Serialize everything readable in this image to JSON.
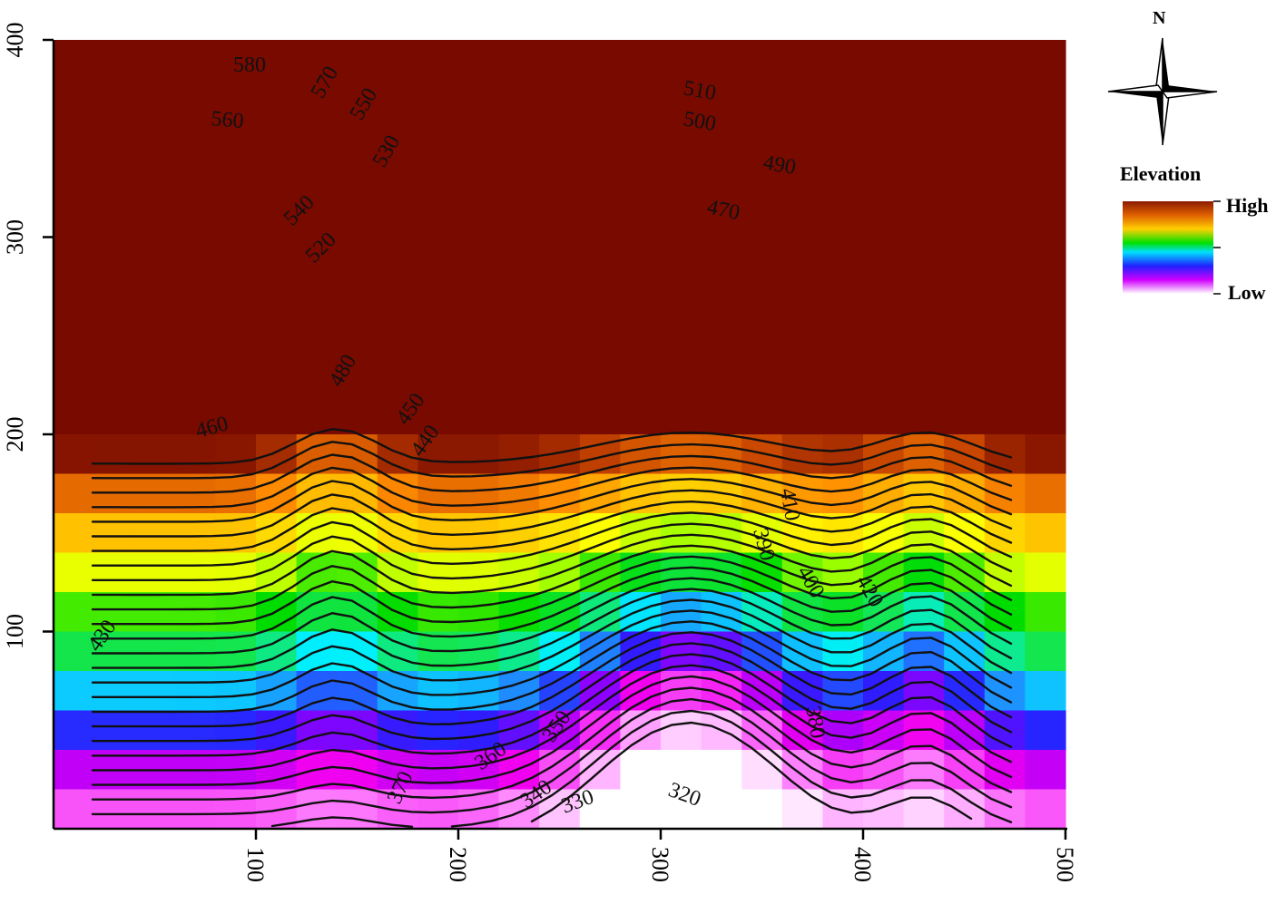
{
  "map": {
    "legend_title": "Elevation",
    "legend_high": "High",
    "legend_low": "Low",
    "north_label": "N",
    "x_ticks": [
      "100",
      "200",
      "300",
      "400",
      "500"
    ],
    "y_ticks": [
      "100",
      "200",
      "300",
      "400"
    ],
    "x_range": [
      0,
      500
    ],
    "y_range": [
      0,
      400
    ],
    "color_ramp": [
      "#6b0000",
      "#b33a00",
      "#ff8c00",
      "#ffd700",
      "#ffff00",
      "#a8ff00",
      "#00e600",
      "#00ffff",
      "#0080ff",
      "#1010ff",
      "#8000ff",
      "#ff00ff",
      "#ffffff"
    ],
    "contour_labels": [
      "580",
      "570",
      "560",
      "550",
      "540",
      "530",
      "520",
      "510",
      "500",
      "490",
      "480",
      "470",
      "460",
      "450",
      "440",
      "430",
      "420",
      "410",
      "400",
      "390",
      "380",
      "370",
      "360",
      "350",
      "340",
      "330",
      "320"
    ]
  }
}
